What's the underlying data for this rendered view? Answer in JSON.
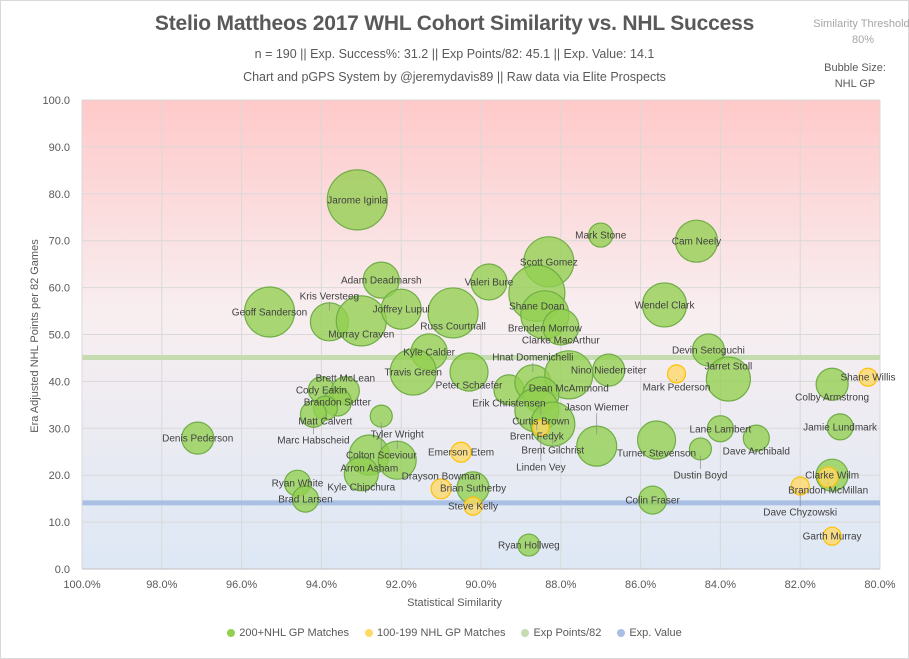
{
  "header": {
    "title": "Stelio Mattheos 2017 WHL Cohort Similarity vs. NHL Success",
    "stats_line": "n = 190 || Exp. Success%: 31.2 || Exp Points/82: 45.1 || Exp. Value: 14.1",
    "credit_line": "Chart and pGPS System by @jeremydavis89 || Raw data via Elite Prospects",
    "threshold_label": "Similarity Threshold:",
    "threshold_value": "80%",
    "bubble_size_label": "Bubble Size:",
    "bubble_size_value": "NHL GP"
  },
  "colors": {
    "green_fill": "#92d050",
    "green_stroke": "#70ad47",
    "yellow_fill": "#ffd966",
    "yellow_stroke": "#ffc000",
    "exp_points_line": "#c5dcb0",
    "exp_value_line": "#a9c0e4",
    "bg_top": "#ffc9c9",
    "bg_bottom": "#dde8f5"
  },
  "chart_data": {
    "type": "scatter",
    "subtype": "bubble",
    "title": "Stelio Mattheos 2017 WHL Cohort Similarity vs. NHL Success",
    "xlabel": "Statistical Similarity",
    "ylabel": "Era Adjusted NHL Points per 82 Games",
    "xlim": [
      100,
      80
    ],
    "ylim": [
      0,
      100
    ],
    "x_reversed": true,
    "grid": true,
    "x_ticks": [
      "100.0%",
      "98.0%",
      "96.0%",
      "94.0%",
      "92.0%",
      "90.0%",
      "88.0%",
      "86.0%",
      "84.0%",
      "82.0%",
      "80.0%"
    ],
    "x_tick_values": [
      100,
      98,
      96,
      94,
      92,
      90,
      88,
      86,
      84,
      82,
      80
    ],
    "y_ticks": [
      "0.0",
      "10.0",
      "20.0",
      "30.0",
      "40.0",
      "50.0",
      "60.0",
      "70.0",
      "80.0",
      "90.0",
      "100.0"
    ],
    "y_tick_values": [
      0,
      10,
      20,
      30,
      40,
      50,
      60,
      70,
      80,
      90,
      100
    ],
    "legend_position": "bottom",
    "legend": [
      "200+NHL GP Matches",
      "100-199 NHL GP Matches",
      "Exp Points/82",
      "Exp. Value"
    ],
    "reference_lines": [
      {
        "name": "Exp Points/82",
        "y": 45.1
      },
      {
        "name": "Exp. Value",
        "y": 14.1
      }
    ],
    "series": [
      {
        "name": "200+NHL GP Matches",
        "points": [
          {
            "label": "Jarome Iginla",
            "x": 93.1,
            "y": 78.7,
            "size": 30
          },
          {
            "label": "Geoff Sanderson",
            "x": 95.3,
            "y": 54.8,
            "size": 25
          },
          {
            "label": "Kris Versteeg",
            "x": 93.8,
            "y": 52.7,
            "size": 19
          },
          {
            "label": "Murray Craven",
            "x": 93.0,
            "y": 52.9,
            "size": 25
          },
          {
            "label": "Adam Deadmarsh",
            "x": 92.5,
            "y": 61.6,
            "size": 18
          },
          {
            "label": "Joffrey Lupul",
            "x": 92.0,
            "y": 55.4,
            "size": 20
          },
          {
            "label": "Russ Courtnall",
            "x": 90.7,
            "y": 54.6,
            "size": 25
          },
          {
            "label": "Valeri Bure",
            "x": 89.8,
            "y": 61.2,
            "size": 18
          },
          {
            "label": "Scott Gomez",
            "x": 88.3,
            "y": 65.5,
            "size": 25
          },
          {
            "label": "Shane Doan",
            "x": 88.6,
            "y": 58.8,
            "size": 28
          },
          {
            "label": "Brenden Morrow",
            "x": 88.4,
            "y": 54.2,
            "size": 24
          },
          {
            "label": "Clarke MacArthur",
            "x": 88.0,
            "y": 51.6,
            "size": 18
          },
          {
            "label": "Mark Stone",
            "x": 87.0,
            "y": 71.2,
            "size": 12
          },
          {
            "label": "Cam Neely",
            "x": 84.6,
            "y": 69.9,
            "size": 21
          },
          {
            "label": "Wendel Clark",
            "x": 85.4,
            "y": 56.3,
            "size": 22
          },
          {
            "label": "Kyle Calder",
            "x": 91.3,
            "y": 46.3,
            "size": 18
          },
          {
            "label": "Travis Green",
            "x": 91.7,
            "y": 42.0,
            "size": 23
          },
          {
            "label": "Peter Schaefer",
            "x": 90.3,
            "y": 42.0,
            "size": 19
          },
          {
            "label": "Erik Christensen",
            "x": 89.3,
            "y": 38.2,
            "size": 15
          },
          {
            "label": "Hnat Domenichelli",
            "x": 88.7,
            "y": 39.7,
            "size": 18
          },
          {
            "label": "Dean McAmmond",
            "x": 87.8,
            "y": 41.4,
            "size": 24
          },
          {
            "label": "Nino Niederreiter",
            "x": 86.8,
            "y": 42.4,
            "size": 16
          },
          {
            "label": "Curtis Brown",
            "x": 88.5,
            "y": 37.1,
            "size": 18
          },
          {
            "label": "Brent Fedyk",
            "x": 88.6,
            "y": 33.9,
            "size": 22
          },
          {
            "label": "Brent Gilchrist",
            "x": 88.2,
            "y": 30.9,
            "size": 22
          },
          {
            "label": "Jason Wiemer",
            "x": 87.1,
            "y": 26.2,
            "size": 20
          },
          {
            "label": "Turner Stevenson",
            "x": 85.6,
            "y": 27.5,
            "size": 19
          },
          {
            "label": "Dustin Boyd",
            "x": 84.5,
            "y": 25.6,
            "size": 11
          },
          {
            "label": "Lane Lambert",
            "x": 84.0,
            "y": 29.9,
            "size": 13
          },
          {
            "label": "Dave Archibald",
            "x": 83.1,
            "y": 27.9,
            "size": 13
          },
          {
            "label": "Devin Setoguchi",
            "x": 84.3,
            "y": 46.7,
            "size": 16
          },
          {
            "label": "Jarret Stoll",
            "x": 83.8,
            "y": 40.5,
            "size": 22
          },
          {
            "label": "Arron Asham",
            "x": 92.8,
            "y": 24.3,
            "size": 20
          },
          {
            "label": "Tyler Wright",
            "x": 92.1,
            "y": 23.2,
            "size": 19
          },
          {
            "label": "Kyle Chipchura",
            "x": 93.0,
            "y": 20.3,
            "size": 17
          },
          {
            "label": "Ryan White",
            "x": 94.6,
            "y": 18.3,
            "size": 13
          },
          {
            "label": "Brad Larsen",
            "x": 94.4,
            "y": 14.9,
            "size": 13
          },
          {
            "label": "Brian Sutherby",
            "x": 90.2,
            "y": 17.3,
            "size": 16
          },
          {
            "label": "Ryan Hollweg",
            "x": 88.8,
            "y": 5.1,
            "size": 11
          },
          {
            "label": "Colin Fraser",
            "x": 85.7,
            "y": 14.7,
            "size": 14
          },
          {
            "label": "Denis Pederson",
            "x": 97.1,
            "y": 27.9,
            "size": 16
          },
          {
            "label": "Cody Eakin",
            "x": 94.0,
            "y": 38.2,
            "size": 13
          },
          {
            "label": "Brett McLean",
            "x": 93.4,
            "y": 38.0,
            "size": 14
          },
          {
            "label": "Brandon Sutter",
            "x": 93.6,
            "y": 35.6,
            "size": 14
          },
          {
            "label": "Matt Calvert",
            "x": 93.9,
            "y": 34.3,
            "size": 12
          },
          {
            "label": "Marc Habscheid",
            "x": 94.2,
            "y": 33.0,
            "size": 13
          },
          {
            "label": "Colton Sceviour",
            "x": 92.5,
            "y": 32.6,
            "size": 11
          },
          {
            "label": "Colby Armstrong",
            "x": 81.2,
            "y": 39.4,
            "size": 16
          },
          {
            "label": "Jamie Lundmark",
            "x": 81.0,
            "y": 30.3,
            "size": 13
          },
          {
            "label": "Clarke Wilm",
            "x": 81.2,
            "y": 20.0,
            "size": 16
          }
        ]
      },
      {
        "name": "100-199 NHL GP Matches",
        "points": [
          {
            "label": "Linden Vey",
            "x": 88.5,
            "y": 30.1,
            "size": 8
          },
          {
            "label": "Mark Pederson",
            "x": 85.1,
            "y": 41.6,
            "size": 9
          },
          {
            "label": "Emerson Etem",
            "x": 90.5,
            "y": 24.9,
            "size": 10
          },
          {
            "label": "Drayson Bowman",
            "x": 91.0,
            "y": 17.1,
            "size": 10
          },
          {
            "label": "Steve Kelly",
            "x": 90.2,
            "y": 13.4,
            "size": 9
          },
          {
            "label": "Shane Willis",
            "x": 80.3,
            "y": 40.9,
            "size": 9
          },
          {
            "label": "Brandon McMillan",
            "x": 81.3,
            "y": 19.6,
            "size": 10
          },
          {
            "label": "Dave Chyzowski",
            "x": 82.0,
            "y": 17.7,
            "size": 9
          },
          {
            "label": "Garth Murray",
            "x": 81.2,
            "y": 7.0,
            "size": 9
          }
        ]
      }
    ]
  }
}
